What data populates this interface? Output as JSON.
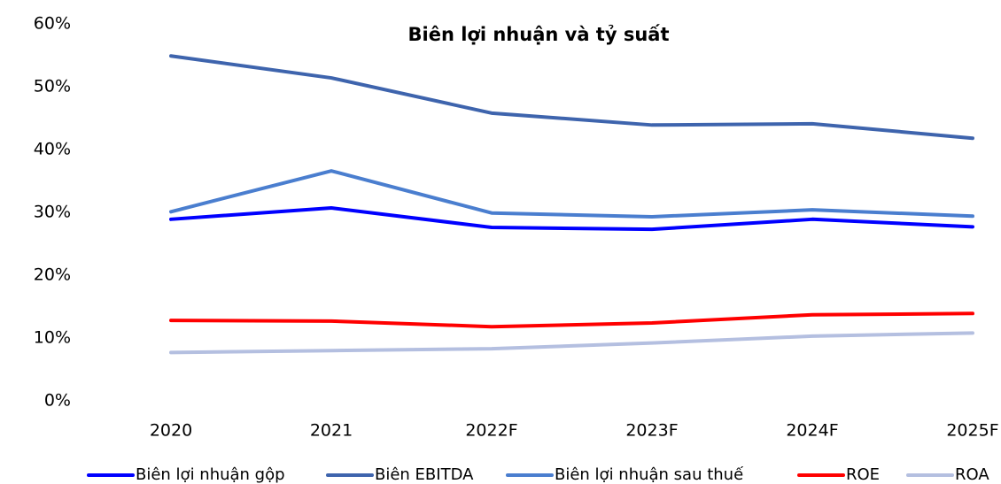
{
  "chart_data": {
    "type": "line",
    "title": "Biên lợi nhuận và tỷ suất",
    "categories": [
      "2020",
      "2021",
      "2022F",
      "2023F",
      "2024F",
      "2025F"
    ],
    "series": [
      {
        "name": "Biên lợi nhuận gộp",
        "color": "#0000ff",
        "values": [
          28.9,
          30.7,
          27.6,
          27.3,
          28.9,
          27.7
        ]
      },
      {
        "name": "Biên EBITDA",
        "color": "#3e64ad",
        "values": [
          54.9,
          51.4,
          45.8,
          43.9,
          44.1,
          41.8
        ]
      },
      {
        "name": "Biên lợi nhuận sau thuế",
        "color": "#4a7ecf",
        "values": [
          30.1,
          36.6,
          29.9,
          29.3,
          30.4,
          29.4
        ]
      },
      {
        "name": "ROE",
        "color": "#ff0000",
        "values": [
          12.8,
          12.7,
          11.8,
          12.4,
          13.7,
          13.9
        ]
      },
      {
        "name": "ROA",
        "color": "#b4bfe0",
        "values": [
          7.7,
          8.0,
          8.3,
          9.2,
          10.3,
          10.8
        ]
      }
    ],
    "ylim": [
      0,
      60
    ],
    "yticks": [
      {
        "value": 0,
        "label": "0%"
      },
      {
        "value": 10,
        "label": "10%"
      },
      {
        "value": 20,
        "label": "20%"
      },
      {
        "value": 30,
        "label": "30%"
      },
      {
        "value": 40,
        "label": "40%"
      },
      {
        "value": 50,
        "label": "50%"
      },
      {
        "value": 60,
        "label": "60%"
      }
    ],
    "grid": false,
    "legend": "bottom"
  }
}
